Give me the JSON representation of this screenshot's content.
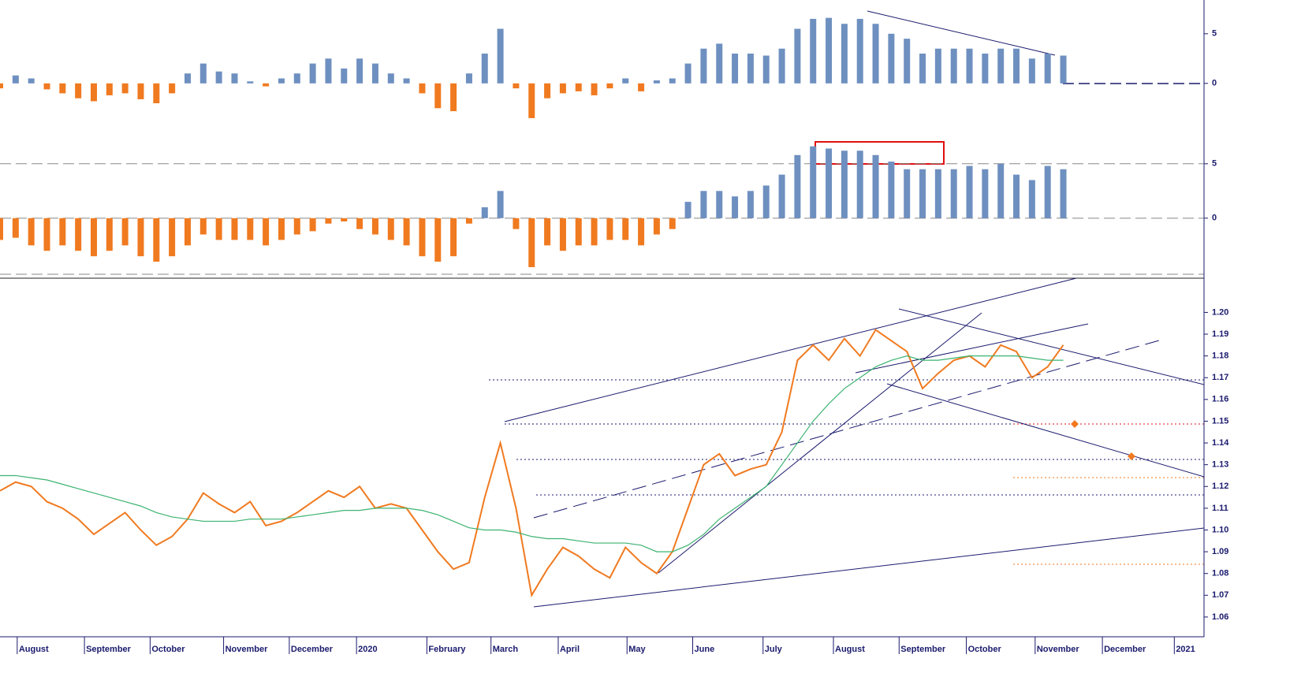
{
  "chart_data": [
    {
      "type": "bar",
      "x": [
        0,
        1,
        2,
        3,
        4,
        5,
        6,
        7,
        8,
        9,
        10,
        11,
        12,
        13,
        14,
        15,
        16,
        17,
        18,
        19,
        20,
        21,
        22,
        23,
        24,
        25,
        26,
        27,
        28,
        29,
        30,
        31,
        32,
        33,
        34,
        35,
        36,
        37,
        38,
        39,
        40,
        41,
        42,
        43,
        44,
        45,
        46,
        47,
        48,
        49,
        50,
        51,
        52,
        53,
        54,
        55,
        56,
        57,
        58,
        59,
        60,
        61,
        62,
        63,
        64,
        65,
        66,
        67,
        68
      ],
      "values": [
        -0.5,
        0.8,
        0.5,
        -0.6,
        -1,
        -1.5,
        -1.8,
        -1.2,
        -1,
        -1.6,
        -2,
        -1,
        1,
        2,
        1.2,
        1,
        0.2,
        -0.3,
        0.5,
        1,
        2,
        2.5,
        1.5,
        2.5,
        2,
        1,
        0.5,
        -1,
        -2.5,
        -2.8,
        1,
        3,
        5.5,
        -0.5,
        -3.5,
        -1.5,
        -1,
        -0.8,
        -1.2,
        -0.5,
        0.5,
        -0.8,
        0.3,
        0.5,
        2,
        3.5,
        4,
        3,
        3,
        2.8,
        3.5,
        5.5,
        6.5,
        6.6,
        6,
        6.5,
        6,
        5,
        4.5,
        3,
        3.5,
        3.5,
        3.5,
        3,
        3.5,
        3.5,
        2.5,
        3,
        2.8
      ],
      "positive_color": "#6e90c0",
      "negative_color": "#f07a20",
      "xlim": [
        0,
        77
      ],
      "ylim": [
        -4.7,
        8.4
      ],
      "yticks": [
        0,
        5
      ]
    },
    {
      "type": "bar",
      "x": [
        0,
        1,
        2,
        3,
        4,
        5,
        6,
        7,
        8,
        9,
        10,
        11,
        12,
        13,
        14,
        15,
        16,
        17,
        18,
        19,
        20,
        21,
        22,
        23,
        24,
        25,
        26,
        27,
        28,
        29,
        30,
        31,
        32,
        33,
        34,
        35,
        36,
        37,
        38,
        39,
        40,
        41,
        42,
        43,
        44,
        45,
        46,
        47,
        48,
        49,
        50,
        51,
        52,
        53,
        54,
        55,
        56,
        57,
        58,
        59,
        60,
        61,
        62,
        63,
        64,
        65,
        66,
        67,
        68
      ],
      "values": [
        -2,
        -1.8,
        -2.5,
        -3,
        -2.5,
        -3,
        -3.5,
        -3,
        -2.5,
        -3.5,
        -4,
        -3.5,
        -2.5,
        -1.5,
        -2,
        -2,
        -2,
        -2.5,
        -2,
        -1.5,
        -1.2,
        -0.5,
        -0.3,
        -1,
        -1.5,
        -2,
        -2.5,
        -3.5,
        -4,
        -3.5,
        -0.5,
        1,
        2.5,
        -1,
        -4.5,
        -2.5,
        -3,
        -2.5,
        -2.5,
        -2,
        -2,
        -2.5,
        -1.5,
        -1,
        1.5,
        2.5,
        2.5,
        2,
        2.5,
        3,
        4,
        5.8,
        6.6,
        6.4,
        6.2,
        6.2,
        5.8,
        5.2,
        4.5,
        4.5,
        4.5,
        4.5,
        4.8,
        4.5,
        5,
        4,
        3.5,
        4.8,
        4.5
      ],
      "positive_color": "#6e90c0",
      "negative_color": "#f07a20",
      "xlim": [
        0,
        77
      ],
      "ylim": [
        -5.3,
        8.1
      ],
      "yticks": [
        0,
        5
      ],
      "grid": true
    },
    {
      "type": "line",
      "x": [
        0,
        1,
        2,
        3,
        4,
        5,
        6,
        7,
        8,
        9,
        10,
        11,
        12,
        13,
        14,
        15,
        16,
        17,
        18,
        19,
        20,
        21,
        22,
        23,
        24,
        25,
        26,
        27,
        28,
        29,
        30,
        31,
        32,
        33,
        34,
        35,
        36,
        37,
        38,
        39,
        40,
        41,
        42,
        43,
        44,
        45,
        46,
        47,
        48,
        49,
        50,
        51,
        52,
        53,
        54,
        55,
        56,
        57,
        58,
        59,
        60,
        61,
        62,
        63,
        64,
        65,
        66,
        67,
        68
      ],
      "series": [
        {
          "color": "#f07a20",
          "values": [
            1.118,
            1.122,
            1.12,
            1.113,
            1.11,
            1.105,
            1.098,
            1.103,
            1.108,
            1.1,
            1.093,
            1.097,
            1.105,
            1.117,
            1.112,
            1.108,
            1.113,
            1.102,
            1.104,
            1.108,
            1.113,
            1.118,
            1.115,
            1.12,
            1.11,
            1.112,
            1.11,
            1.1,
            1.09,
            1.082,
            1.085,
            1.115,
            1.14,
            1.11,
            1.07,
            1.082,
            1.092,
            1.088,
            1.082,
            1.078,
            1.092,
            1.085,
            1.08,
            1.09,
            1.11,
            1.13,
            1.135,
            1.125,
            1.128,
            1.13,
            1.145,
            1.178,
            1.185,
            1.178,
            1.188,
            1.18,
            1.192,
            1.187,
            1.182,
            1.165,
            1.172,
            1.178,
            1.18,
            1.175,
            1.185,
            1.182,
            1.17,
            1.175,
            1.185
          ]
        },
        {
          "color": "#3cb371",
          "values": [
            1.125,
            1.125,
            1.124,
            1.123,
            1.121,
            1.119,
            1.117,
            1.115,
            1.113,
            1.111,
            1.108,
            1.106,
            1.105,
            1.104,
            1.104,
            1.104,
            1.105,
            1.105,
            1.105,
            1.106,
            1.107,
            1.108,
            1.109,
            1.109,
            1.11,
            1.11,
            1.11,
            1.109,
            1.107,
            1.104,
            1.101,
            1.1,
            1.1,
            1.099,
            1.097,
            1.096,
            1.096,
            1.095,
            1.094,
            1.094,
            1.094,
            1.093,
            1.09,
            1.09,
            1.093,
            1.098,
            1.105,
            1.11,
            1.115,
            1.12,
            1.13,
            1.14,
            1.15,
            1.158,
            1.165,
            1.17,
            1.175,
            1.178,
            1.18,
            1.178,
            1.178,
            1.179,
            1.18,
            1.18,
            1.18,
            1.18,
            1.179,
            1.178,
            1.178
          ]
        }
      ],
      "xlim": [
        0,
        77
      ],
      "ylim": [
        1.052,
        1.215
      ],
      "yticks": [
        {
          "value": 1.2,
          "label": "1.20"
        },
        1.19,
        1.18,
        1.17,
        1.16,
        1.15,
        1.14,
        1.13,
        1.12,
        1.11,
        {
          "value": 1.1,
          "label": "1.10"
        },
        1.09,
        1.08,
        1.07,
        1.06
      ],
      "xticks": [
        {
          "value": 1.1,
          "label": "August"
        },
        {
          "value": 5.4,
          "label": "September"
        },
        {
          "value": 9.6,
          "label": "October"
        },
        {
          "value": 14.3,
          "label": "November"
        },
        {
          "value": 18.5,
          "label": "December"
        },
        {
          "value": 22.8,
          "label": "2020"
        },
        {
          "value": 27.3,
          "label": "February"
        },
        {
          "value": 31.4,
          "label": "March"
        },
        {
          "value": 35.7,
          "label": "April"
        },
        {
          "value": 40.1,
          "label": "May"
        },
        {
          "value": 44.3,
          "label": "June"
        },
        {
          "value": 48.8,
          "label": "July"
        },
        {
          "value": 53.3,
          "label": "August"
        },
        {
          "value": 57.5,
          "label": "September"
        },
        {
          "value": 61.8,
          "label": "October"
        },
        {
          "value": 66.2,
          "label": "November"
        },
        {
          "value": 70.5,
          "label": "December"
        },
        {
          "value": 75.1,
          "label": "2021"
        }
      ]
    }
  ]
}
